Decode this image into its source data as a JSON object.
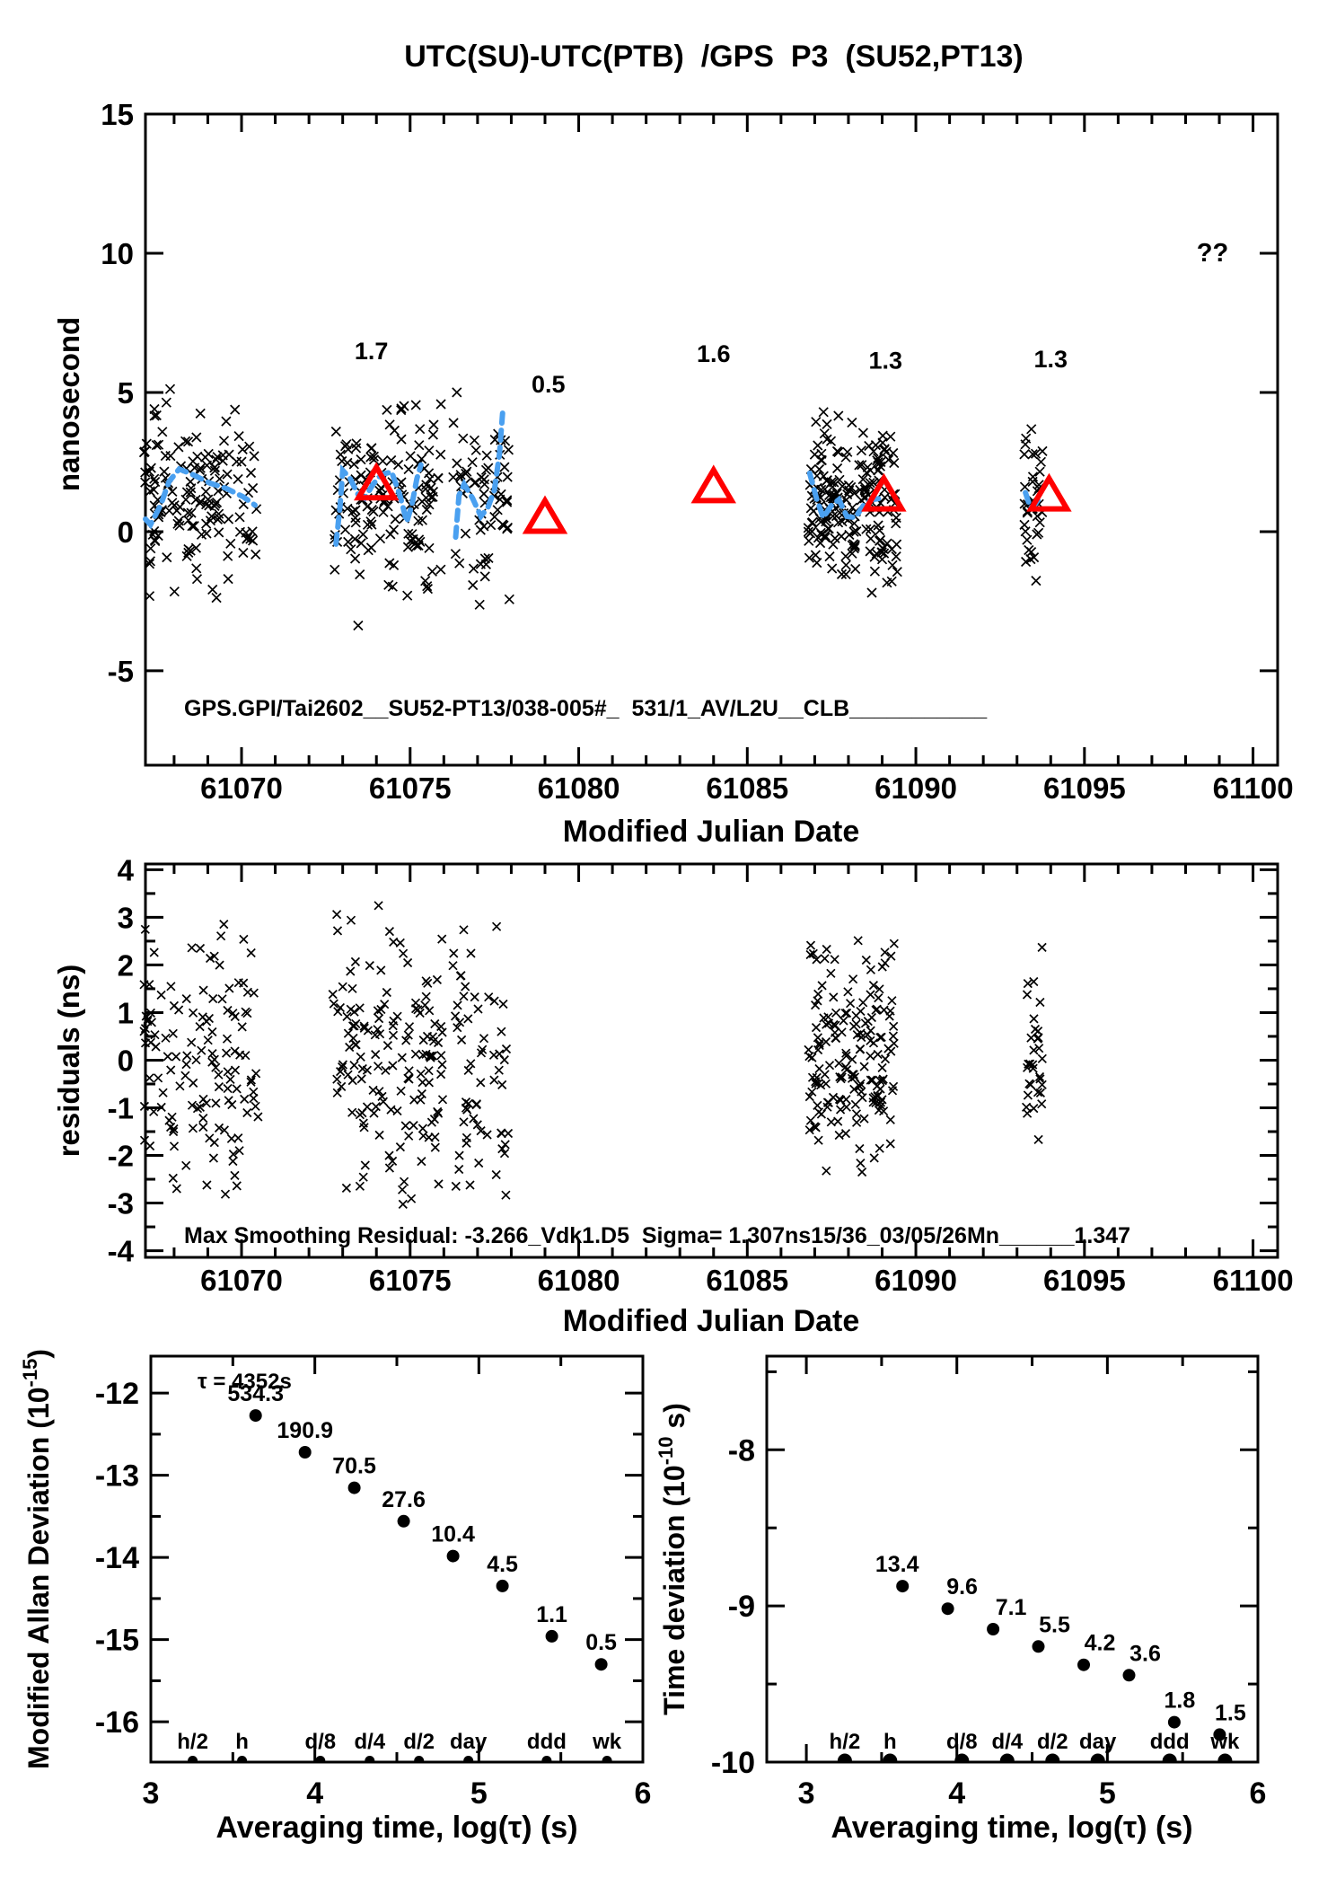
{
  "title": "UTC(SU)-UTC(PTB)  /GPS  P3  (SU52,PT13)",
  "colors": {
    "marker_black": "#000000",
    "highlight_red": "#ff0000",
    "smooth_blue": "#4aa0f0"
  },
  "chart_data": [
    {
      "panel": "p1",
      "type": "scatter",
      "title": "UTC(SU)-UTC(PTB)  /GPS  P3  (SU52,PT13)",
      "xlabel": "Modified Julian Date",
      "ylabel": "nanosecond",
      "xlim": [
        61067.15,
        61100.73
      ],
      "ylim": [
        -8.39,
        15
      ],
      "grid": false,
      "xticks": {
        "major": [
          61070,
          61100,
          5
        ],
        "minor": 1
      },
      "yticks": {
        "major": [
          -5,
          15,
          5
        ]
      },
      "annotation": {
        "text": "GPS.GPI/Tai2602__SU52-PT13/038-005#_  531/1_AV/L2U__CLB___________",
        "x": 61068.25,
        "y": -6.6
      },
      "triangles": {
        "color": "#ff0000",
        "points": [
          {
            "x": 61074.0,
            "y": 1.7,
            "label": "1.7",
            "label_x": 61073.85,
            "label_y": 6.2
          },
          {
            "x": 61079.0,
            "y": 0.5,
            "label": "0.5",
            "label_x": 61079.1,
            "label_y": 5.0
          },
          {
            "x": 61084.0,
            "y": 1.6,
            "label": "1.6",
            "label_x": 61084.0,
            "label_y": 6.1
          },
          {
            "x": 61089.05,
            "y": 1.3,
            "label": "1.3",
            "label_x": 61089.1,
            "label_y": 5.85
          },
          {
            "x": 61093.95,
            "y": 1.3,
            "label": "1.3",
            "label_x": 61094.0,
            "label_y": 5.9
          }
        ],
        "missing_label": {
          "text": "??",
          "x": 61098.8,
          "y": 10.0
        }
      },
      "smooth_line": {
        "color": "#4aa0f0",
        "dash": "11 8",
        "width": 6,
        "segments": [
          [
            [
              61067.15,
              0.45
            ],
            [
              61067.3,
              0.25
            ],
            [
              61067.6,
              0.95
            ],
            [
              61067.85,
              1.8
            ],
            [
              61068.15,
              2.25
            ],
            [
              61068.55,
              2.05
            ],
            [
              61069.05,
              1.75
            ],
            [
              61069.55,
              1.55
            ],
            [
              61070.05,
              1.25
            ],
            [
              61070.4,
              0.95
            ]
          ],
          [
            [
              61072.8,
              -0.45
            ],
            [
              61072.92,
              0.9
            ],
            [
              61073.0,
              2.2
            ],
            [
              61073.2,
              1.95
            ],
            [
              61073.45,
              1.35
            ],
            [
              61073.65,
              1.2
            ],
            [
              61073.9,
              1.7
            ],
            [
              61074.15,
              2.05
            ],
            [
              61074.45,
              2.15
            ],
            [
              61074.7,
              1.3
            ],
            [
              61074.9,
              0.35
            ],
            [
              61075.05,
              0.95
            ],
            [
              61075.2,
              1.9
            ],
            [
              61075.32,
              2.4
            ]
          ],
          [
            [
              61076.35,
              -0.2
            ],
            [
              61076.45,
              1.3
            ],
            [
              61076.6,
              1.7
            ],
            [
              61076.85,
              1.2
            ],
            [
              61077.1,
              0.55
            ],
            [
              61077.3,
              0.85
            ],
            [
              61077.5,
              1.5
            ],
            [
              61077.65,
              2.8
            ],
            [
              61077.75,
              4.4
            ]
          ],
          [
            [
              61086.85,
              2.1
            ],
            [
              61087.05,
              1.2
            ],
            [
              61087.25,
              0.5
            ],
            [
              61087.5,
              0.95
            ],
            [
              61087.72,
              1.15
            ],
            [
              61087.95,
              0.55
            ],
            [
              61088.2,
              0.5
            ],
            [
              61088.45,
              0.95
            ],
            [
              61088.7,
              1.15
            ],
            [
              61089.0,
              1.2
            ]
          ],
          [
            [
              61093.25,
              1.4
            ],
            [
              61093.4,
              0.85
            ],
            [
              61093.55,
              1.0
            ],
            [
              61093.72,
              1.3
            ]
          ]
        ]
      },
      "scatter_clusters": [
        {
          "x_range": [
            61067.1,
            61070.45
          ],
          "count": 150,
          "y_center": 1.25,
          "y_sd": 1.55,
          "y_clip": [
            -2.4,
            5.6
          ],
          "seed": 11
        },
        {
          "x_range": [
            61072.75,
            61075.95
          ],
          "count": 145,
          "y_center": 1.35,
          "y_sd": 1.6,
          "y_clip": [
            -3.6,
            4.9
          ],
          "seed": 22
        },
        {
          "x_range": [
            61076.25,
            61077.95
          ],
          "count": 65,
          "y_center": 1.1,
          "y_sd": 1.6,
          "y_clip": [
            -2.9,
            5.2
          ],
          "seed": 33
        },
        {
          "x_range": [
            61086.8,
            61089.45
          ],
          "count": 200,
          "y_center": 0.95,
          "y_sd": 1.35,
          "y_clip": [
            -2.9,
            4.3
          ],
          "seed": 44
        },
        {
          "x_range": [
            61093.2,
            61093.8
          ],
          "count": 38,
          "y_center": 1.0,
          "y_sd": 1.3,
          "y_clip": [
            -1.9,
            3.9
          ],
          "seed": 55
        }
      ]
    },
    {
      "panel": "p2",
      "type": "scatter",
      "xlabel": "Modified Julian Date",
      "ylabel": "residuals (ns)",
      "xlim": [
        61067.15,
        61100.73
      ],
      "ylim": [
        -4.14,
        4.12
      ],
      "grid": false,
      "xticks": {
        "major": [
          61070,
          61100,
          5
        ],
        "minor": 1
      },
      "yticks": {
        "major": [
          -4,
          4,
          1
        ],
        "minor": 0.5
      },
      "annotation": {
        "text": "Max Smoothing Residual: -3.266_Vdk1.D5  Sigma= 1.307ns15/36_03/05/26Mn______1.347",
        "x": 61068.25,
        "y": -3.85
      },
      "scatter_clusters": [
        {
          "x_range": [
            61067.1,
            61070.5
          ],
          "count": 130,
          "y_center": -0.1,
          "y_sd": 1.5,
          "y_clip": [
            -2.9,
            3.3
          ],
          "seed": 61
        },
        {
          "x_range": [
            61072.7,
            61076.0
          ],
          "count": 150,
          "y_center": 0.0,
          "y_sd": 1.5,
          "y_clip": [
            -3.1,
            3.35
          ],
          "seed": 62
        },
        {
          "x_range": [
            61076.25,
            61077.95
          ],
          "count": 60,
          "y_center": -0.2,
          "y_sd": 1.5,
          "y_clip": [
            -2.9,
            3.3
          ],
          "seed": 63
        },
        {
          "x_range": [
            61086.8,
            61089.4
          ],
          "count": 170,
          "y_center": 0.0,
          "y_sd": 1.2,
          "y_clip": [
            -2.7,
            3.2
          ],
          "seed": 64
        },
        {
          "x_range": [
            61093.25,
            61093.75
          ],
          "count": 32,
          "y_center": 0.0,
          "y_sd": 1.0,
          "y_clip": [
            -2.2,
            2.7
          ],
          "seed": 65
        }
      ]
    },
    {
      "panel": "p3",
      "type": "scatter",
      "xlabel": "Averaging time, log(τ) (s)",
      "ylabel_parts": [
        "Modified Allan Deviation (10",
        "-15",
        ")"
      ],
      "xlim": [
        3,
        6
      ],
      "ylim": [
        -16.49,
        -11.55
      ],
      "grid": false,
      "xticks": {
        "major": [
          3,
          6,
          1
        ],
        "minor": 0.5
      },
      "yticks": {
        "major": [
          -16,
          -12,
          1
        ],
        "minor": 0.5
      },
      "annotation": {
        "text": "τ = 4352s",
        "x": 3.28,
        "y": -11.9
      },
      "unit_exponent": -15,
      "tau_seconds": [
        4352,
        8704,
        17408,
        34816,
        69632,
        139264,
        278528,
        557056
      ],
      "values": [
        534.3,
        190.9,
        70.5,
        27.6,
        10.4,
        4.5,
        1.1,
        0.5
      ],
      "value_labels": [
        "534.3",
        "190.9",
        "70.5",
        "27.6",
        "10.4",
        "4.5",
        "1.1",
        "0.5"
      ],
      "time_markers": [
        {
          "label": "h/2",
          "seconds": 1800
        },
        {
          "label": "h",
          "seconds": 3600
        },
        {
          "label": "d/8",
          "seconds": 10800
        },
        {
          "label": "d/4",
          "seconds": 21600
        },
        {
          "label": "d/2",
          "seconds": 43200
        },
        {
          "label": "day",
          "seconds": 86400
        },
        {
          "label": "ddd",
          "seconds": 259200
        },
        {
          "label": "wk",
          "seconds": 604800
        }
      ]
    },
    {
      "panel": "p4",
      "type": "scatter",
      "xlabel": "Averaging time, log(τ) (s)",
      "ylabel_parts": [
        "Time deviation (10",
        "-10",
        " s)"
      ],
      "xlim": [
        2.737,
        6
      ],
      "ylim": [
        -10.0,
        -7.4
      ],
      "grid": false,
      "xticks": {
        "major": [
          3,
          6,
          1
        ],
        "minor": 0.5
      },
      "yticks": {
        "major": [
          -10,
          -8,
          1
        ],
        "minor": 0.5
      },
      "unit_exponent": -10,
      "tau_seconds": [
        4352,
        8704,
        17408,
        34816,
        69632,
        139264,
        278528,
        557056
      ],
      "values": [
        13.4,
        9.6,
        7.1,
        5.5,
        4.2,
        3.6,
        1.8,
        1.5
      ],
      "value_labels": [
        "13.4",
        "9.6",
        "7.1",
        "5.5",
        "4.2",
        "3.6",
        "1.8",
        "1.5"
      ],
      "label_dx": [
        -6,
        16,
        20,
        18,
        18,
        18,
        6,
        12
      ],
      "time_markers": [
        {
          "label": "h/2",
          "seconds": 1800
        },
        {
          "label": "h",
          "seconds": 3600
        },
        {
          "label": "d/8",
          "seconds": 10800
        },
        {
          "label": "d/4",
          "seconds": 21600
        },
        {
          "label": "d/2",
          "seconds": 43200
        },
        {
          "label": "day",
          "seconds": 86400
        },
        {
          "label": "ddd",
          "seconds": 259200
        },
        {
          "label": "wk",
          "seconds": 604800
        }
      ]
    }
  ]
}
